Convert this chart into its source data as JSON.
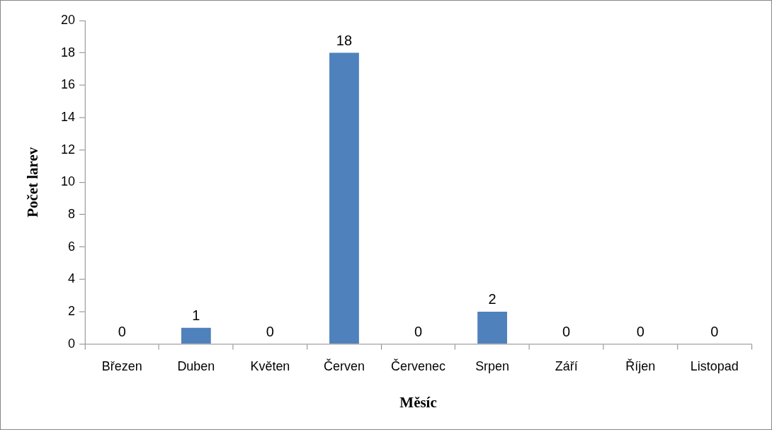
{
  "chart_data": {
    "type": "bar",
    "xlabel": "Měsíc",
    "ylabel": "Počet larev",
    "categories": [
      "Březen",
      "Duben",
      "Květen",
      "Červen",
      "Červenec",
      "Srpen",
      "Září",
      "Říjen",
      "Listopad"
    ],
    "values": [
      0,
      1,
      0,
      18,
      0,
      2,
      0,
      0,
      0
    ],
    "color": "#4f81bd",
    "ylim": [
      0,
      20
    ],
    "yticks": [
      0,
      2,
      4,
      6,
      8,
      10,
      12,
      14,
      16,
      18,
      20
    ],
    "grid": false,
    "legend": false,
    "data_labels": true
  }
}
